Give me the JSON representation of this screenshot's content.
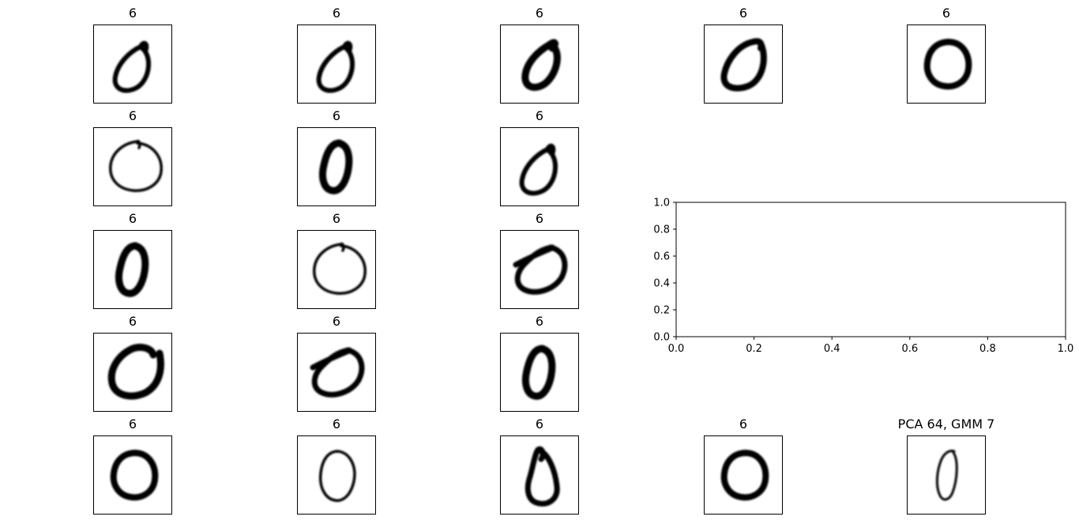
{
  "figure": {
    "panels": [
      {
        "title": "6",
        "digit": "ring-tilted-tail"
      },
      {
        "title": "6",
        "digit": "ring-tilted-tail"
      },
      {
        "title": "6",
        "digit": "ring-small-thick"
      },
      {
        "title": "6",
        "digit": "ring-thick"
      },
      {
        "title": "6",
        "digit": "ring-round-bold"
      },
      {
        "title": "6",
        "digit": "ring-thin-wide"
      },
      {
        "title": "6",
        "digit": "ring-narrow-bold"
      },
      {
        "title": "6",
        "digit": "ring-tilted-tail"
      },
      {
        "title": "6",
        "digit": "ring-narrow-bold"
      },
      {
        "title": "6",
        "digit": "ring-thin-wide"
      },
      {
        "title": "6",
        "digit": "ring-wide-tilt"
      },
      {
        "title": "6",
        "digit": "ring-open-hook"
      },
      {
        "title": "6",
        "digit": "ring-wide-tilt"
      },
      {
        "title": "6",
        "digit": "ring-narrow-bold"
      },
      {
        "title": "6",
        "digit": "ring-round-bold"
      },
      {
        "title": "6",
        "digit": "ring-thin-oval"
      },
      {
        "title": "6",
        "digit": "ring-teardrop"
      },
      {
        "title": "6",
        "digit": "ring-round-bold"
      },
      {
        "title": "PCA 64, GMM 7",
        "digit": "ring-thin-narrow"
      }
    ],
    "line_color": "#000000"
  },
  "chart_data": {
    "type": "line",
    "title": "",
    "xlabel": "",
    "ylabel": "",
    "xlim": [
      0.0,
      1.0
    ],
    "ylim": [
      0.0,
      1.0
    ],
    "xticks": [
      "0.0",
      "0.2",
      "0.4",
      "0.6",
      "0.8",
      "1.0"
    ],
    "yticks": [
      "0.0",
      "0.2",
      "0.4",
      "0.6",
      "0.8",
      "1.0"
    ],
    "series": [],
    "grid": false
  }
}
